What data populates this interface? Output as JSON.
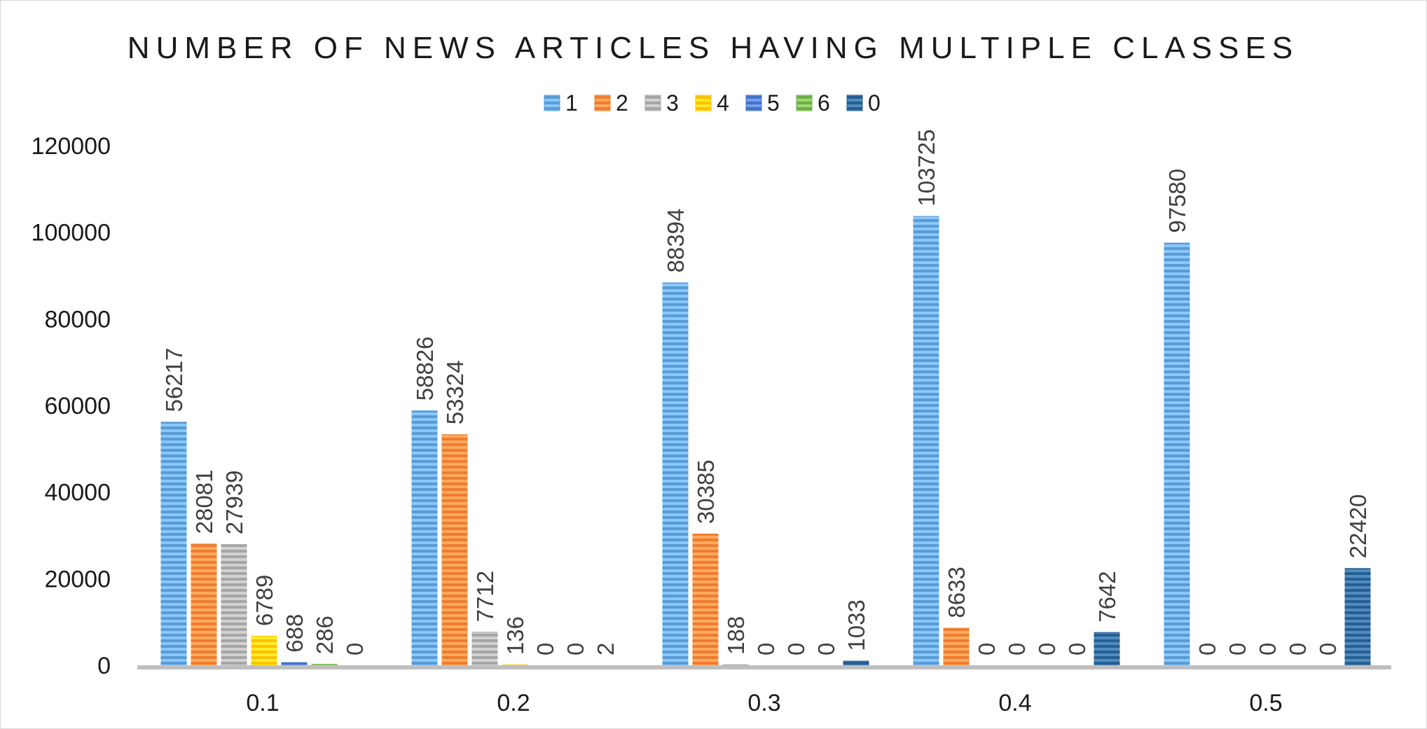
{
  "chart_data": {
    "type": "bar",
    "title": "NUMBER OF NEWS ARTICLES HAVING MULTIPLE CLASSES",
    "xlabel": "",
    "ylabel": "",
    "categories": [
      "0.1",
      "0.2",
      "0.3",
      "0.4",
      "0.5"
    ],
    "ylim": [
      0,
      120000
    ],
    "yticks": [
      "0",
      "20000",
      "40000",
      "60000",
      "80000",
      "100000",
      "120000"
    ],
    "legend_position": "top",
    "grid": false,
    "data_labels": true,
    "series": [
      {
        "name": "1",
        "color": "#5b9bd5",
        "values": [
          56217,
          58826,
          88394,
          103725,
          97580
        ]
      },
      {
        "name": "2",
        "color": "#ed7d31",
        "values": [
          28081,
          53324,
          30385,
          8633,
          0
        ]
      },
      {
        "name": "3",
        "color": "#a5a5a5",
        "values": [
          27939,
          7712,
          188,
          0,
          0
        ]
      },
      {
        "name": "4",
        "color": "#ffc000",
        "values": [
          6789,
          136,
          0,
          0,
          0
        ]
      },
      {
        "name": "5",
        "color": "#4472c4",
        "values": [
          688,
          0,
          0,
          0,
          0
        ]
      },
      {
        "name": "6",
        "color": "#70ad47",
        "values": [
          286,
          0,
          0,
          0,
          0
        ]
      },
      {
        "name": "0",
        "color": "#255e91",
        "values": [
          0,
          2,
          1033,
          7642,
          22420
        ]
      }
    ]
  }
}
